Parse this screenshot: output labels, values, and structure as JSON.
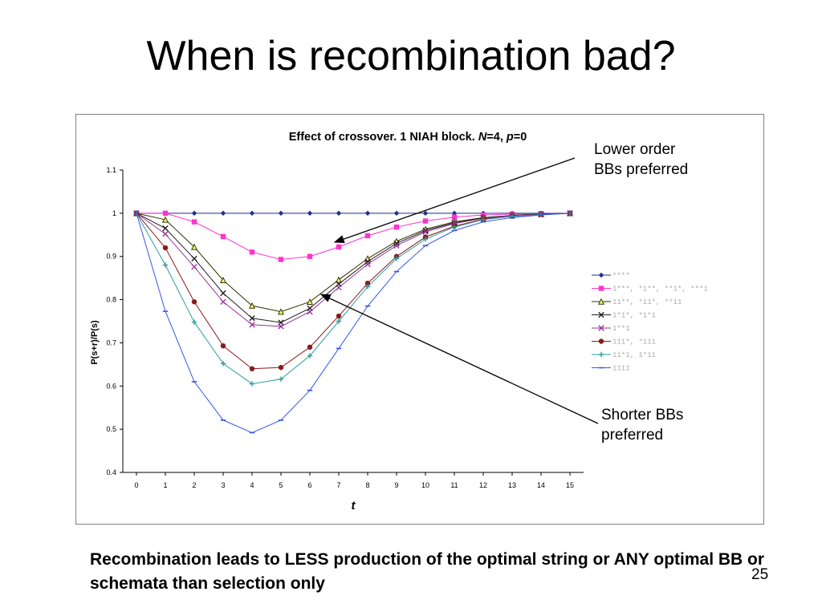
{
  "slide": {
    "title": "When is recombination bad?",
    "callout_lower_order": "Lower order\nBBs preferred",
    "callout_shorter": "Shorter BBs\npreferred",
    "caption": "Recombination leads to LESS production of the optimal string or ANY optimal BB or schemata than selection only",
    "slide_number": "25"
  },
  "chart_data": {
    "type": "line",
    "title_prefix": "Effect of crossover. 1 NIAH block. ",
    "title_N": "N",
    "title_N_val": "=4, ",
    "title_p": "p",
    "title_p_val": "=0",
    "xlabel": "t",
    "ylabel": "P(s+r)/P(s)",
    "x": [
      0,
      1,
      2,
      3,
      4,
      5,
      6,
      7,
      8,
      9,
      10,
      11,
      12,
      13,
      14,
      15
    ],
    "xlim": [
      0,
      15
    ],
    "ylim": [
      0.4,
      1.1
    ],
    "yticks": [
      "0.4",
      "0.5",
      "0.6",
      "0.7",
      "0.8",
      "0.9",
      "1",
      "1.1"
    ],
    "ytick_values": [
      0.4,
      0.5,
      0.6,
      0.7,
      0.8,
      0.9,
      1.0,
      1.1
    ],
    "grid": false,
    "legend_position": "right",
    "series": [
      {
        "name": "****",
        "color": "#1f2f8f",
        "marker": "diamond",
        "values": [
          1,
          1,
          1,
          1,
          1,
          1,
          1,
          1,
          1,
          1,
          1,
          1,
          1,
          1,
          1,
          1
        ]
      },
      {
        "name": "1***, *1**, **1*, ***1",
        "color": "#ff33cc",
        "marker": "square",
        "values": [
          1,
          1,
          0.98,
          0.946,
          0.91,
          0.893,
          0.9,
          0.922,
          0.948,
          0.968,
          0.982,
          0.991,
          0.996,
          0.998,
          0.999,
          1
        ]
      },
      {
        "name": "11**, *11*, **11",
        "color": "#333300",
        "marker": "triangle",
        "values": [
          1,
          0.985,
          0.922,
          0.845,
          0.786,
          0.772,
          0.795,
          0.846,
          0.895,
          0.935,
          0.963,
          0.98,
          0.99,
          0.995,
          0.998,
          1
        ]
      },
      {
        "name": "1*1*, *1*1",
        "color": "#222222",
        "marker": "x",
        "values": [
          1,
          0.965,
          0.895,
          0.815,
          0.757,
          0.747,
          0.78,
          0.836,
          0.888,
          0.93,
          0.96,
          0.978,
          0.989,
          0.995,
          0.998,
          1
        ]
      },
      {
        "name": "1**1",
        "color": "#993399",
        "marker": "x",
        "values": [
          1,
          0.952,
          0.876,
          0.795,
          0.742,
          0.738,
          0.772,
          0.828,
          0.882,
          0.925,
          0.957,
          0.976,
          0.988,
          0.994,
          0.997,
          1
        ]
      },
      {
        "name": "111*, *111",
        "color": "#8b1a1a",
        "marker": "circle",
        "values": [
          1,
          0.92,
          0.795,
          0.693,
          0.64,
          0.643,
          0.69,
          0.762,
          0.838,
          0.9,
          0.945,
          0.97,
          0.986,
          0.993,
          0.997,
          1
        ]
      },
      {
        "name": "11*1, 1*11",
        "color": "#2e9e9e",
        "marker": "plus",
        "values": [
          1,
          0.88,
          0.748,
          0.652,
          0.605,
          0.616,
          0.67,
          0.75,
          0.83,
          0.895,
          0.94,
          0.968,
          0.985,
          0.993,
          0.997,
          1
        ]
      },
      {
        "name": "1111",
        "color": "#3355ee",
        "marker": "dash",
        "values": [
          1,
          0.773,
          0.61,
          0.521,
          0.492,
          0.521,
          0.59,
          0.687,
          0.785,
          0.865,
          0.925,
          0.96,
          0.98,
          0.99,
          0.996,
          1
        ]
      }
    ]
  }
}
